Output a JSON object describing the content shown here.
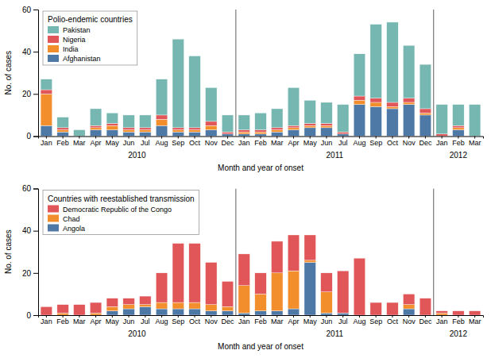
{
  "chart_data": [
    {
      "type": "bar",
      "stacked": true,
      "title": "Polio-endemic countries",
      "ylabel": "No. of cases",
      "xlabel": "Month and year of onset",
      "categories": [
        "Jan",
        "Feb",
        "Mar",
        "Apr",
        "May",
        "Jun",
        "Jul",
        "Aug",
        "Sep",
        "Oct",
        "Nov",
        "Dec",
        "Jan",
        "Feb",
        "Mar",
        "Apr",
        "May",
        "Jun",
        "Jul",
        "Aug",
        "Sep",
        "Oct",
        "Nov",
        "Dec",
        "Jan",
        "Feb",
        "Mar"
      ],
      "annotations": [
        "2010",
        "2011",
        "2012"
      ],
      "series": [
        {
          "name": "Afghanistan",
          "values": [
            5,
            2,
            0,
            3,
            3,
            2,
            2,
            5,
            2,
            2,
            3,
            1,
            1,
            1,
            2,
            3,
            4,
            4,
            1,
            15,
            14,
            13,
            15,
            10,
            0,
            3,
            0
          ]
        },
        {
          "name": "India",
          "values": [
            15,
            1,
            0,
            1,
            2,
            1,
            1,
            3,
            1,
            1,
            2,
            0,
            1,
            1,
            1,
            1,
            1,
            1,
            0,
            2,
            2,
            1,
            1,
            1,
            0,
            1,
            0
          ]
        },
        {
          "name": "Nigeria",
          "values": [
            2,
            1,
            0,
            1,
            1,
            1,
            1,
            2,
            1,
            1,
            2,
            1,
            1,
            1,
            1,
            1,
            1,
            1,
            1,
            2,
            2,
            2,
            2,
            2,
            1,
            1,
            0
          ]
        },
        {
          "name": "Pakistan",
          "values": [
            5,
            5,
            3,
            8,
            5,
            6,
            6,
            17,
            42,
            34,
            16,
            8,
            7,
            8,
            9,
            18,
            11,
            10,
            13,
            20,
            35,
            38,
            25,
            21,
            14,
            10,
            15
          ]
        }
      ],
      "ylim": [
        0,
        60
      ],
      "yticks": [
        0,
        20,
        40,
        60
      ],
      "grid": false,
      "legend": "upper left"
    },
    {
      "type": "bar",
      "stacked": true,
      "title": "Countries with reestablished transmission",
      "ylabel": "No. of cases",
      "xlabel": "Month and year of onset",
      "categories": [
        "Jan",
        "Feb",
        "Mar",
        "Apr",
        "May",
        "Jun",
        "Jul",
        "Aug",
        "Sep",
        "Oct",
        "Nov",
        "Dec",
        "Jan",
        "Feb",
        "Mar",
        "Apr",
        "May",
        "Jun",
        "Jul",
        "Aug",
        "Sep",
        "Oct",
        "Nov",
        "Dec",
        "Jan",
        "Feb",
        "Mar"
      ],
      "annotations": [
        "2010",
        "2011",
        "2012"
      ],
      "series": [
        {
          "name": "Angola",
          "values": [
            0,
            0,
            0,
            0,
            2,
            3,
            4,
            3,
            3,
            3,
            2,
            2,
            1,
            2,
            2,
            3,
            25,
            1,
            1,
            0,
            0,
            0,
            3,
            0,
            0,
            0,
            0
          ]
        },
        {
          "name": "Chad",
          "values": [
            0,
            1,
            0,
            1,
            2,
            2,
            1,
            3,
            3,
            3,
            3,
            2,
            13,
            8,
            18,
            18,
            1,
            10,
            0,
            0,
            0,
            0,
            2,
            0,
            1,
            0,
            0
          ]
        },
        {
          "name": "Democratic Republic of the Congo",
          "values": [
            4,
            4,
            5,
            5,
            4,
            3,
            4,
            14,
            28,
            28,
            20,
            12,
            15,
            10,
            15,
            17,
            12,
            9,
            20,
            27,
            6,
            6,
            5,
            8,
            1,
            2,
            2
          ]
        }
      ],
      "ylim": [
        0,
        60
      ],
      "yticks": [
        0,
        20,
        40,
        60
      ],
      "grid": false,
      "legend": "upper left"
    }
  ]
}
